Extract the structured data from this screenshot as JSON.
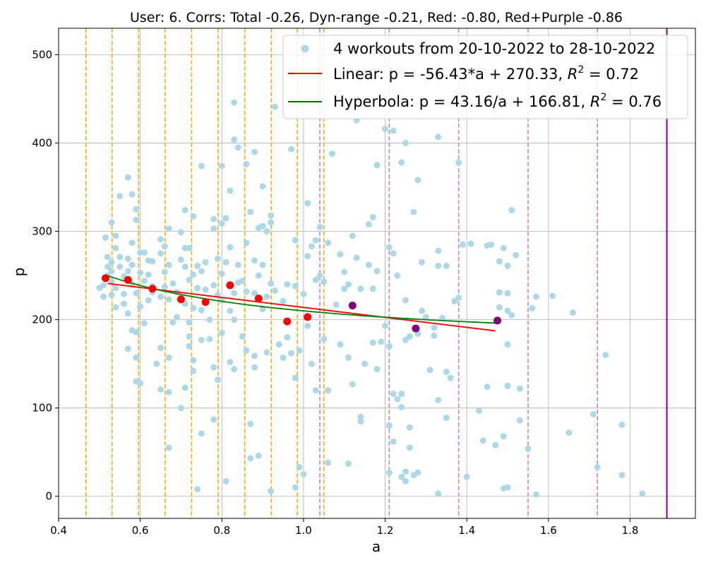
{
  "chart_data": {
    "type": "scatter",
    "title": "User: 6. Corrs: Total -0.26, Dyn-range -0.21, Red: -0.80, Red+Purple -0.86",
    "xlabel": "a",
    "ylabel": "p",
    "xlim": [
      0.4,
      1.96
    ],
    "ylim": [
      -25,
      530
    ],
    "xticks": [
      "0.4",
      "0.6",
      "0.8",
      "1.0",
      "1.2",
      "1.4",
      "1.6",
      "1.8"
    ],
    "xtick_values": [
      0.4,
      0.6,
      0.8,
      1.0,
      1.2,
      1.4,
      1.6,
      1.8
    ],
    "yticks": [
      "0",
      "100",
      "200",
      "300",
      "400",
      "500"
    ],
    "ytick_values": [
      0,
      100,
      200,
      300,
      400,
      500
    ],
    "grid": true,
    "legend_placement": "top-right",
    "colors": {
      "scatter": "#add8e6",
      "red": "#ff0000",
      "purple": "#800080",
      "linear": "#ff0000",
      "hyperbola": "#008000",
      "orange_line": "#ffa500",
      "purple_line": "#bf7fbf",
      "edge_line": "#800080"
    },
    "legend": {
      "scatter": "4 workouts from 20-10-2022 to 28-10-2022",
      "linear_prefix": "Linear: p = -56.43*a + 270.33, ",
      "linear_suffix": " = 0.72",
      "hyperbola_prefix": "Hyperbola: p = 43.16/a + 166.81, ",
      "hyperbola_suffix": " = 0.76",
      "r_symbol": "R",
      "r_exponent": "2"
    },
    "orange_vlines": [
      0.467,
      0.531,
      0.596,
      0.661,
      0.726,
      0.791,
      0.856,
      0.921,
      0.985,
      1.05
    ],
    "purple_vlines": [
      1.04,
      1.21,
      1.38,
      1.55,
      1.72
    ],
    "solid_vline": 1.89,
    "linear_fit": {
      "a": -56.43,
      "b": 270.33,
      "x_range": [
        0.52,
        1.47
      ]
    },
    "hyperbola_fit": {
      "a": 43.16,
      "b": 166.81,
      "x_range": [
        0.52,
        1.47
      ]
    },
    "red_points": [
      [
        0.515,
        247
      ],
      [
        0.57,
        245
      ],
      [
        0.63,
        235
      ],
      [
        0.7,
        223
      ],
      [
        0.76,
        220
      ],
      [
        0.82,
        239
      ],
      [
        0.89,
        224
      ],
      [
        0.96,
        198
      ],
      [
        1.01,
        203
      ]
    ],
    "purple_points": [
      [
        1.12,
        216
      ],
      [
        1.275,
        190
      ],
      [
        1.475,
        199
      ]
    ],
    "scatter_points": [
      [
        0.5,
        236
      ],
      [
        0.51,
        239
      ],
      [
        0.51,
        226
      ],
      [
        0.52,
        250
      ],
      [
        0.52,
        260
      ],
      [
        0.52,
        271
      ],
      [
        0.515,
        293
      ],
      [
        0.53,
        310
      ],
      [
        0.53,
        265
      ],
      [
        0.53,
        255
      ],
      [
        0.53,
        243
      ],
      [
        0.53,
        228
      ],
      [
        0.54,
        281
      ],
      [
        0.54,
        295
      ],
      [
        0.54,
        236
      ],
      [
        0.54,
        214
      ],
      [
        0.55,
        271
      ],
      [
        0.55,
        340
      ],
      [
        0.55,
        260
      ],
      [
        0.56,
        249
      ],
      [
        0.56,
        218
      ],
      [
        0.56,
        229
      ],
      [
        0.57,
        361
      ],
      [
        0.57,
        269
      ],
      [
        0.57,
        207
      ],
      [
        0.57,
        255
      ],
      [
        0.57,
        167
      ],
      [
        0.58,
        342
      ],
      [
        0.58,
        287
      ],
      [
        0.58,
        262
      ],
      [
        0.58,
        240
      ],
      [
        0.58,
        188
      ],
      [
        0.59,
        325
      ],
      [
        0.59,
        313
      ],
      [
        0.59,
        230
      ],
      [
        0.59,
        186
      ],
      [
        0.59,
        157
      ],
      [
        0.59,
        130
      ],
      [
        0.6,
        276
      ],
      [
        0.6,
        253
      ],
      [
        0.6,
        215
      ],
      [
        0.6,
        128
      ],
      [
        0.61,
        276
      ],
      [
        0.61,
        244
      ],
      [
        0.61,
        196
      ],
      [
        0.62,
        267
      ],
      [
        0.62,
        222
      ],
      [
        0.62,
        251
      ],
      [
        0.63,
        266
      ],
      [
        0.63,
        238
      ],
      [
        0.63,
        231
      ],
      [
        0.64,
        150
      ],
      [
        0.65,
        291
      ],
      [
        0.65,
        275
      ],
      [
        0.65,
        226
      ],
      [
        0.65,
        168
      ],
      [
        0.65,
        121
      ],
      [
        0.66,
        283
      ],
      [
        0.66,
        254
      ],
      [
        0.66,
        237
      ],
      [
        0.67,
        303
      ],
      [
        0.67,
        262
      ],
      [
        0.67,
        223
      ],
      [
        0.67,
        157
      ],
      [
        0.67,
        118
      ],
      [
        0.67,
        55
      ],
      [
        0.68,
        241
      ],
      [
        0.68,
        197
      ],
      [
        0.69,
        231
      ],
      [
        0.69,
        203
      ],
      [
        0.7,
        299
      ],
      [
        0.7,
        268
      ],
      [
        0.7,
        225
      ],
      [
        0.7,
        100
      ],
      [
        0.71,
        324
      ],
      [
        0.71,
        281
      ],
      [
        0.71,
        260
      ],
      [
        0.71,
        218
      ],
      [
        0.71,
        123
      ],
      [
        0.72,
        281
      ],
      [
        0.72,
        245
      ],
      [
        0.72,
        170
      ],
      [
        0.72,
        181
      ],
      [
        0.72,
        197
      ],
      [
        0.73,
        317
      ],
      [
        0.73,
        251
      ],
      [
        0.73,
        213
      ],
      [
        0.73,
        154
      ],
      [
        0.73,
        142
      ],
      [
        0.74,
        261
      ],
      [
        0.74,
        236
      ],
      [
        0.74,
        8
      ],
      [
        0.75,
        374
      ],
      [
        0.75,
        255
      ],
      [
        0.75,
        211
      ],
      [
        0.75,
        177
      ],
      [
        0.75,
        71
      ],
      [
        0.76,
        265
      ],
      [
        0.76,
        234
      ],
      [
        0.77,
        200
      ],
      [
        0.77,
        178
      ],
      [
        0.78,
        314
      ],
      [
        0.78,
        303
      ],
      [
        0.78,
        239
      ],
      [
        0.78,
        146
      ],
      [
        0.78,
        87
      ],
      [
        0.79,
        269
      ],
      [
        0.79,
        228
      ],
      [
        0.79,
        132
      ],
      [
        0.8,
        374
      ],
      [
        0.8,
        309
      ],
      [
        0.8,
        252
      ],
      [
        0.8,
        222
      ],
      [
        0.8,
        185
      ],
      [
        0.81,
        315
      ],
      [
        0.81,
        265
      ],
      [
        0.81,
        17
      ],
      [
        0.82,
        346
      ],
      [
        0.82,
        282
      ],
      [
        0.82,
        210
      ],
      [
        0.82,
        152
      ],
      [
        0.83,
        446
      ],
      [
        0.83,
        404
      ],
      [
        0.83,
        230
      ],
      [
        0.83,
        200
      ],
      [
        0.83,
        144
      ],
      [
        0.84,
        395
      ],
      [
        0.84,
        262
      ],
      [
        0.84,
        242
      ],
      [
        0.85,
        244
      ],
      [
        0.85,
        181
      ],
      [
        0.86,
        376
      ],
      [
        0.86,
        287
      ],
      [
        0.86,
        232
      ],
      [
        0.86,
        165
      ],
      [
        0.87,
        322
      ],
      [
        0.87,
        43
      ],
      [
        0.87,
        82
      ],
      [
        0.88,
        390
      ],
      [
        0.88,
        267
      ],
      [
        0.88,
        230
      ],
      [
        0.88,
        159
      ],
      [
        0.88,
        146
      ],
      [
        0.89,
        304
      ],
      [
        0.89,
        250
      ],
      [
        0.89,
        46
      ],
      [
        0.9,
        351
      ],
      [
        0.9,
        306
      ],
      [
        0.9,
        262
      ],
      [
        0.9,
        212
      ],
      [
        0.91,
        300
      ],
      [
        0.91,
        226
      ],
      [
        0.91,
        163
      ],
      [
        0.92,
        318
      ],
      [
        0.92,
        310
      ],
      [
        0.92,
        241
      ],
      [
        0.92,
        6
      ],
      [
        0.93,
        441
      ],
      [
        0.93,
        233
      ],
      [
        0.94,
        172
      ],
      [
        0.95,
        157
      ],
      [
        0.95,
        221
      ],
      [
        0.96,
        240
      ],
      [
        0.96,
        180
      ],
      [
        0.97,
        393
      ],
      [
        0.97,
        162
      ],
      [
        0.98,
        290
      ],
      [
        0.98,
        238
      ],
      [
        0.98,
        134
      ],
      [
        0.98,
        10
      ],
      [
        0.99,
        165
      ],
      [
        0.99,
        33
      ],
      [
        1.0,
        229
      ],
      [
        1.0,
        25
      ],
      [
        1.01,
        332
      ],
      [
        1.01,
        272
      ],
      [
        1.01,
        193
      ],
      [
        1.02,
        283
      ],
      [
        1.02,
        150
      ],
      [
        1.03,
        290
      ],
      [
        1.03,
        245
      ],
      [
        1.03,
        120
      ],
      [
        1.04,
        305
      ],
      [
        1.04,
        250
      ],
      [
        1.05,
        243
      ],
      [
        1.05,
        178
      ],
      [
        1.06,
        287
      ],
      [
        1.06,
        120
      ],
      [
        1.06,
        38
      ],
      [
        1.07,
        388
      ],
      [
        1.08,
        217
      ],
      [
        1.09,
        274
      ],
      [
        1.09,
        172
      ],
      [
        1.1,
        254
      ],
      [
        1.1,
        235
      ],
      [
        1.11,
        240
      ],
      [
        1.11,
        157
      ],
      [
        1.11,
        37
      ],
      [
        1.12,
        295
      ],
      [
        1.12,
        127
      ],
      [
        1.13,
        426
      ],
      [
        1.13,
        270
      ],
      [
        1.14,
        235
      ],
      [
        1.14,
        90
      ],
      [
        1.14,
        85
      ],
      [
        1.15,
        150
      ],
      [
        1.16,
        308
      ],
      [
        1.16,
        262
      ],
      [
        1.17,
        316
      ],
      [
        1.17,
        235
      ],
      [
        1.17,
        174
      ],
      [
        1.18,
        375
      ],
      [
        1.18,
        255
      ],
      [
        1.18,
        144
      ],
      [
        1.19,
        175
      ],
      [
        1.2,
        416
      ],
      [
        1.2,
        193
      ],
      [
        1.21,
        282
      ],
      [
        1.21,
        170
      ],
      [
        1.21,
        80
      ],
      [
        1.21,
        27
      ],
      [
        1.22,
        414
      ],
      [
        1.22,
        275
      ],
      [
        1.22,
        116
      ],
      [
        1.22,
        62
      ],
      [
        1.23,
        250
      ],
      [
        1.23,
        110
      ],
      [
        1.24,
        378
      ],
      [
        1.24,
        116
      ],
      [
        1.24,
        101
      ],
      [
        1.24,
        22
      ],
      [
        1.25,
        400
      ],
      [
        1.25,
        222
      ],
      [
        1.25,
        177
      ],
      [
        1.25,
        28
      ],
      [
        1.25,
        17
      ],
      [
        1.26,
        181
      ],
      [
        1.26,
        78
      ],
      [
        1.26,
        55
      ],
      [
        1.27,
        322
      ],
      [
        1.27,
        24
      ],
      [
        1.28,
        358
      ],
      [
        1.28,
        184
      ],
      [
        1.28,
        27
      ],
      [
        1.29,
        265
      ],
      [
        1.29,
        210
      ],
      [
        1.3,
        203
      ],
      [
        1.31,
        143
      ],
      [
        1.32,
        191
      ],
      [
        1.32,
        182
      ],
      [
        1.33,
        407
      ],
      [
        1.33,
        278
      ],
      [
        1.33,
        261
      ],
      [
        1.33,
        109
      ],
      [
        1.33,
        3
      ],
      [
        1.34,
        202
      ],
      [
        1.35,
        261
      ],
      [
        1.35,
        141
      ],
      [
        1.35,
        89
      ],
      [
        1.36,
        134
      ],
      [
        1.37,
        221
      ],
      [
        1.38,
        378
      ],
      [
        1.38,
        225
      ],
      [
        1.39,
        285
      ],
      [
        1.4,
        22
      ],
      [
        1.41,
        286
      ],
      [
        1.43,
        97
      ],
      [
        1.44,
        63
      ],
      [
        1.45,
        284
      ],
      [
        1.45,
        124
      ],
      [
        1.46,
        285
      ],
      [
        1.47,
        58
      ],
      [
        1.48,
        266
      ],
      [
        1.48,
        231
      ],
      [
        1.48,
        214
      ],
      [
        1.49,
        281
      ],
      [
        1.49,
        9
      ],
      [
        1.49,
        68
      ],
      [
        1.5,
        261
      ],
      [
        1.5,
        230
      ],
      [
        1.5,
        210
      ],
      [
        1.5,
        172
      ],
      [
        1.5,
        125
      ],
      [
        1.5,
        10
      ],
      [
        1.51,
        324
      ],
      [
        1.51,
        205
      ],
      [
        1.52,
        273
      ],
      [
        1.53,
        122
      ],
      [
        1.53,
        86
      ],
      [
        1.55,
        54
      ],
      [
        1.56,
        213
      ],
      [
        1.57,
        226
      ],
      [
        1.57,
        2
      ],
      [
        1.61,
        227
      ],
      [
        1.65,
        72
      ],
      [
        1.66,
        208
      ],
      [
        1.71,
        93
      ],
      [
        1.72,
        33
      ],
      [
        1.74,
        160
      ],
      [
        1.78,
        81
      ],
      [
        1.78,
        24
      ],
      [
        1.83,
        3
      ]
    ]
  }
}
